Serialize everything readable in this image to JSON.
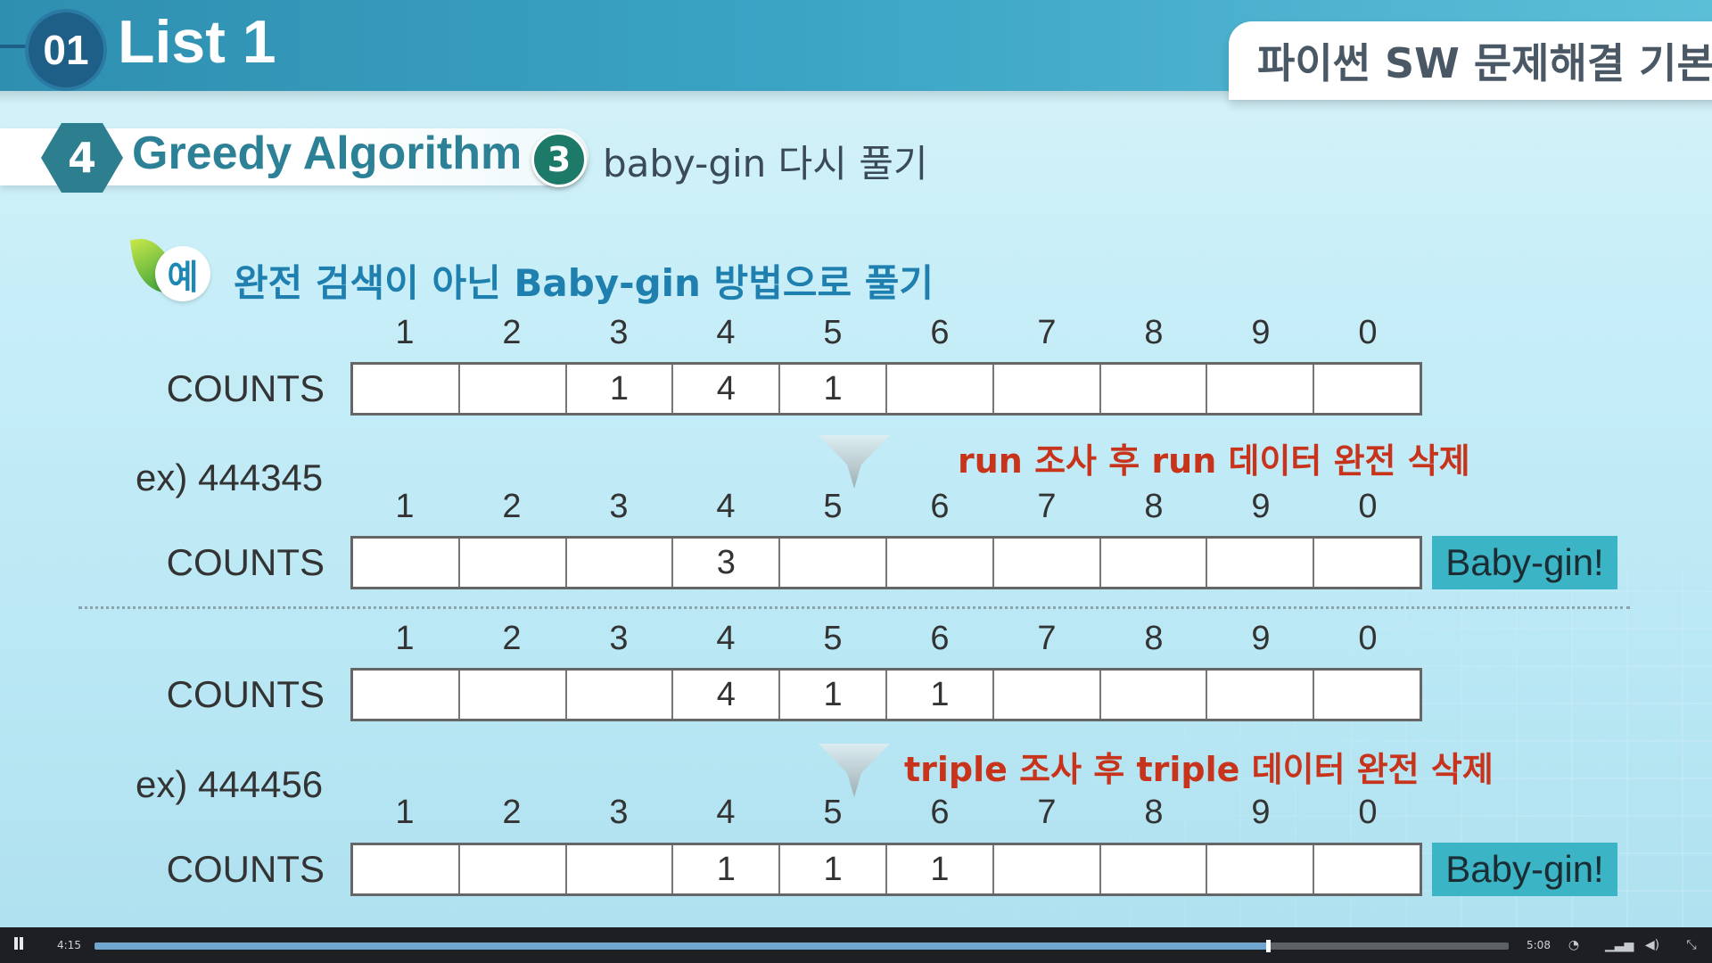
{
  "header": {
    "chapter_number": "01",
    "chapter_title": "List 1",
    "course_title": "파이썬 SW 문제해결 기본"
  },
  "section": {
    "number": "4",
    "title": "Greedy Algorithm",
    "sub_number": "3",
    "sub_title": "baby-gin 다시 풀기"
  },
  "example": {
    "icon_label": "예",
    "title": "완전 검색이 아닌 Baby-gin 방법으로 풀기"
  },
  "digits": [
    "1",
    "2",
    "3",
    "4",
    "5",
    "6",
    "7",
    "8",
    "9",
    "0"
  ],
  "tables": [
    {
      "label": "COUNTS",
      "cells": [
        "",
        "",
        "1",
        "4",
        "1",
        "",
        "",
        "",
        "",
        ""
      ]
    },
    {
      "label": "COUNTS",
      "cells": [
        "",
        "",
        "",
        "3",
        "",
        "",
        "",
        "",
        "",
        ""
      ]
    },
    {
      "label": "COUNTS",
      "cells": [
        "",
        "",
        "",
        "4",
        "1",
        "1",
        "",
        "",
        "",
        ""
      ]
    },
    {
      "label": "COUNTS",
      "cells": [
        "",
        "",
        "",
        "1",
        "1",
        "1",
        "",
        "",
        "",
        ""
      ]
    }
  ],
  "examples": [
    {
      "label": "ex) 444345",
      "note": "run 조사 후 run 데이터 완전 삭제",
      "result": "Baby-gin!"
    },
    {
      "label": "ex) 444456",
      "note": "triple 조사 후 triple 데이터 완전 삭제",
      "result": "Baby-gin!"
    }
  ],
  "video": {
    "current_time": "4:15",
    "total_time": "5:08",
    "progress": 0.83,
    "icons": [
      "pause-icon",
      "speed-icon",
      "quality-icon",
      "volume-icon",
      "exit-fullscreen-icon"
    ]
  },
  "colors": {
    "header_blue": "#3aa3c4",
    "section_teal": "#2d8196",
    "note_red": "#c8331b",
    "result_badge": "#3bb4c6"
  }
}
